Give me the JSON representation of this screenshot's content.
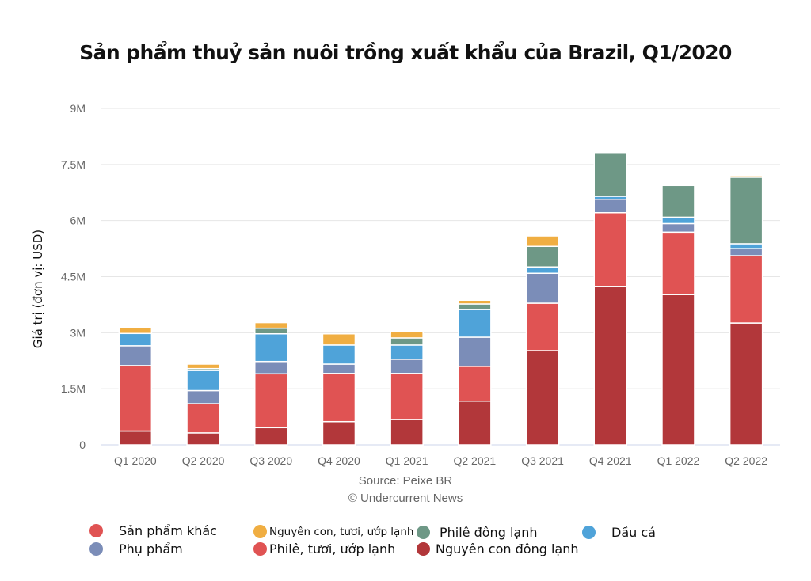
{
  "chart_data": {
    "type": "bar",
    "stacked": true,
    "title": "Sản phẩm thuỷ sản nuôi trồng xuất khẩu của Brazil, Q1/2020",
    "xlabel": "",
    "ylabel": "Giá trị (đơn vị: USD)",
    "ylim": [
      0,
      9000000
    ],
    "yticks": [
      0,
      1500000,
      3000000,
      4500000,
      6000000,
      7500000,
      9000000
    ],
    "ytick_labels": [
      "0",
      "1.5M",
      "3M",
      "4.5M",
      "6M",
      "7.5M",
      "9M"
    ],
    "grid": true,
    "categories": [
      "Q1 2020",
      "Q2 2020",
      "Q3 2020",
      "Q4 2020",
      "Q1 2021",
      "Q2 2021",
      "Q3 2021",
      "Q4 2021",
      "Q1 2022",
      "Q2 2022"
    ],
    "series": [
      {
        "name": "Nguyên con đông lạnh",
        "color": "#b2373a",
        "values": [
          370000,
          320000,
          460000,
          620000,
          680000,
          1170000,
          2520000,
          4240000,
          4020000,
          3260000
        ]
      },
      {
        "name": "Philê, tươi, ướp lạnh",
        "color": "#e05353",
        "values": [
          1750000,
          780000,
          1440000,
          1290000,
          1230000,
          930000,
          1270000,
          1970000,
          1670000,
          1800000
        ]
      },
      {
        "name": "Phụ phẩm",
        "color": "#7b8db8",
        "values": [
          530000,
          350000,
          330000,
          250000,
          380000,
          780000,
          800000,
          360000,
          230000,
          190000
        ]
      },
      {
        "name": "Dầu cá",
        "color": "#4fa3d9",
        "values": [
          330000,
          540000,
          740000,
          510000,
          380000,
          740000,
          170000,
          80000,
          170000,
          130000
        ]
      },
      {
        "name": "Philê đông lạnh",
        "color": "#6e9886",
        "values": [
          0,
          50000,
          150000,
          0,
          190000,
          150000,
          550000,
          1170000,
          850000,
          1780000
        ]
      },
      {
        "name": "Nguyên con, tươi, ướp lạnh",
        "color": "#f0ae42",
        "values": [
          150000,
          120000,
          150000,
          300000,
          170000,
          100000,
          280000,
          0,
          0,
          40000
        ]
      },
      {
        "name": "Sản phẩm khác",
        "color": "#e05353",
        "values": [
          0,
          0,
          0,
          0,
          0,
          0,
          0,
          0,
          0,
          0
        ]
      }
    ],
    "legend_position": "bottom",
    "legend": [
      {
        "name": "Sản phẩm khác",
        "color": "#e05353"
      },
      {
        "name": "Nguyên con, tươi, ướp lạnh",
        "color": "#f0ae42"
      },
      {
        "name": "Philê đông lạnh",
        "color": "#6e9886"
      },
      {
        "name": "Dầu cá",
        "color": "#4fa3d9"
      },
      {
        "name": "Phụ phẩm",
        "color": "#7b8db8"
      },
      {
        "name": "Philê, tươi, ướp lạnh",
        "color": "#e05353"
      },
      {
        "name": "Nguyên con đông lạnh",
        "color": "#b2373a"
      }
    ],
    "source": "Source: Peixe BR",
    "copyright": "© Undercurrent News"
  }
}
